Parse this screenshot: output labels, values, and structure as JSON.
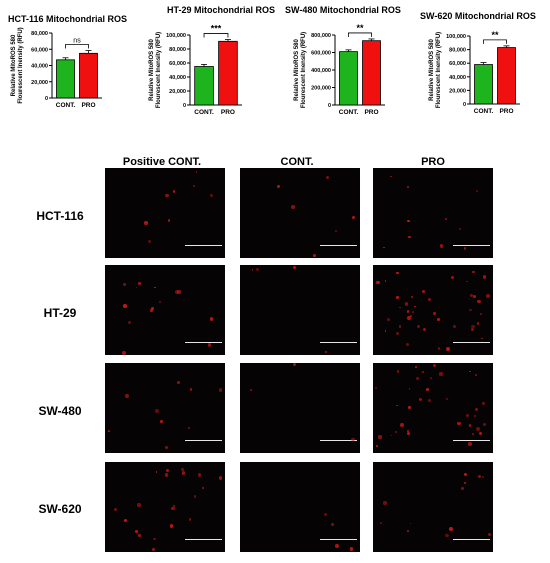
{
  "colors": {
    "cont": "#1db41d",
    "pro": "#f01010",
    "panel_bg": "#050303",
    "spot": "#c81818"
  },
  "chart_data": [
    {
      "type": "bar",
      "title": "HCT-116 Mitochondrial ROS",
      "ylabel_lines": [
        "Relative MitoROS 580",
        "Flourescent Inensity (RFU)"
      ],
      "categories": [
        "CONT.",
        "PRO"
      ],
      "values": [
        47000,
        55000
      ],
      "errors": [
        2500,
        3500
      ],
      "ylim": [
        0,
        80000
      ],
      "yticks": [
        "0",
        "20,000",
        "40,000",
        "60,000",
        "80,000"
      ],
      "significance": "ns"
    },
    {
      "type": "bar",
      "title": "HT-29 Mitochondrial ROS",
      "ylabel_lines": [
        "Relative MitoROS 580",
        "Flourescent Inensity (RFU)"
      ],
      "categories": [
        "CONT.",
        "PRO"
      ],
      "values": [
        55000,
        91000
      ],
      "errors": [
        3000,
        2500
      ],
      "ylim": [
        0,
        100000
      ],
      "yticks": [
        "0",
        "20,000",
        "40,000",
        "60,000",
        "80,000",
        "100,000"
      ],
      "significance": "***"
    },
    {
      "type": "bar",
      "title": "SW-480 Mitochondrial ROS",
      "ylabel_lines": [
        "Relative MitoROS 580",
        "Flourescent Inensity (RFU)"
      ],
      "categories": [
        "CONT.",
        "PRO"
      ],
      "values": [
        610000,
        735000
      ],
      "errors": [
        20000,
        20000
      ],
      "ylim": [
        0,
        800000
      ],
      "yticks": [
        "0",
        "200,000",
        "400,000",
        "600,000",
        "800,000"
      ],
      "significance": "**"
    },
    {
      "type": "bar",
      "title": "SW-620 Mitochondrial ROS",
      "ylabel_lines": [
        "Relative MitoROS 580",
        "Flourescent Inensity (RFU)"
      ],
      "categories": [
        "CONT.",
        "PRO"
      ],
      "values": [
        58000,
        83000
      ],
      "errors": [
        3000,
        2500
      ],
      "ylim": [
        0,
        100000
      ],
      "yticks": [
        "0",
        "20,000",
        "40,000",
        "60,000",
        "80,000",
        "100,000"
      ],
      "significance": "**"
    }
  ],
  "image_grid": {
    "columns": [
      "Positive CONT.",
      "CONT.",
      "PRO"
    ],
    "rows": [
      "HCT-116",
      "HT-29",
      "SW-480",
      "SW-620"
    ]
  }
}
